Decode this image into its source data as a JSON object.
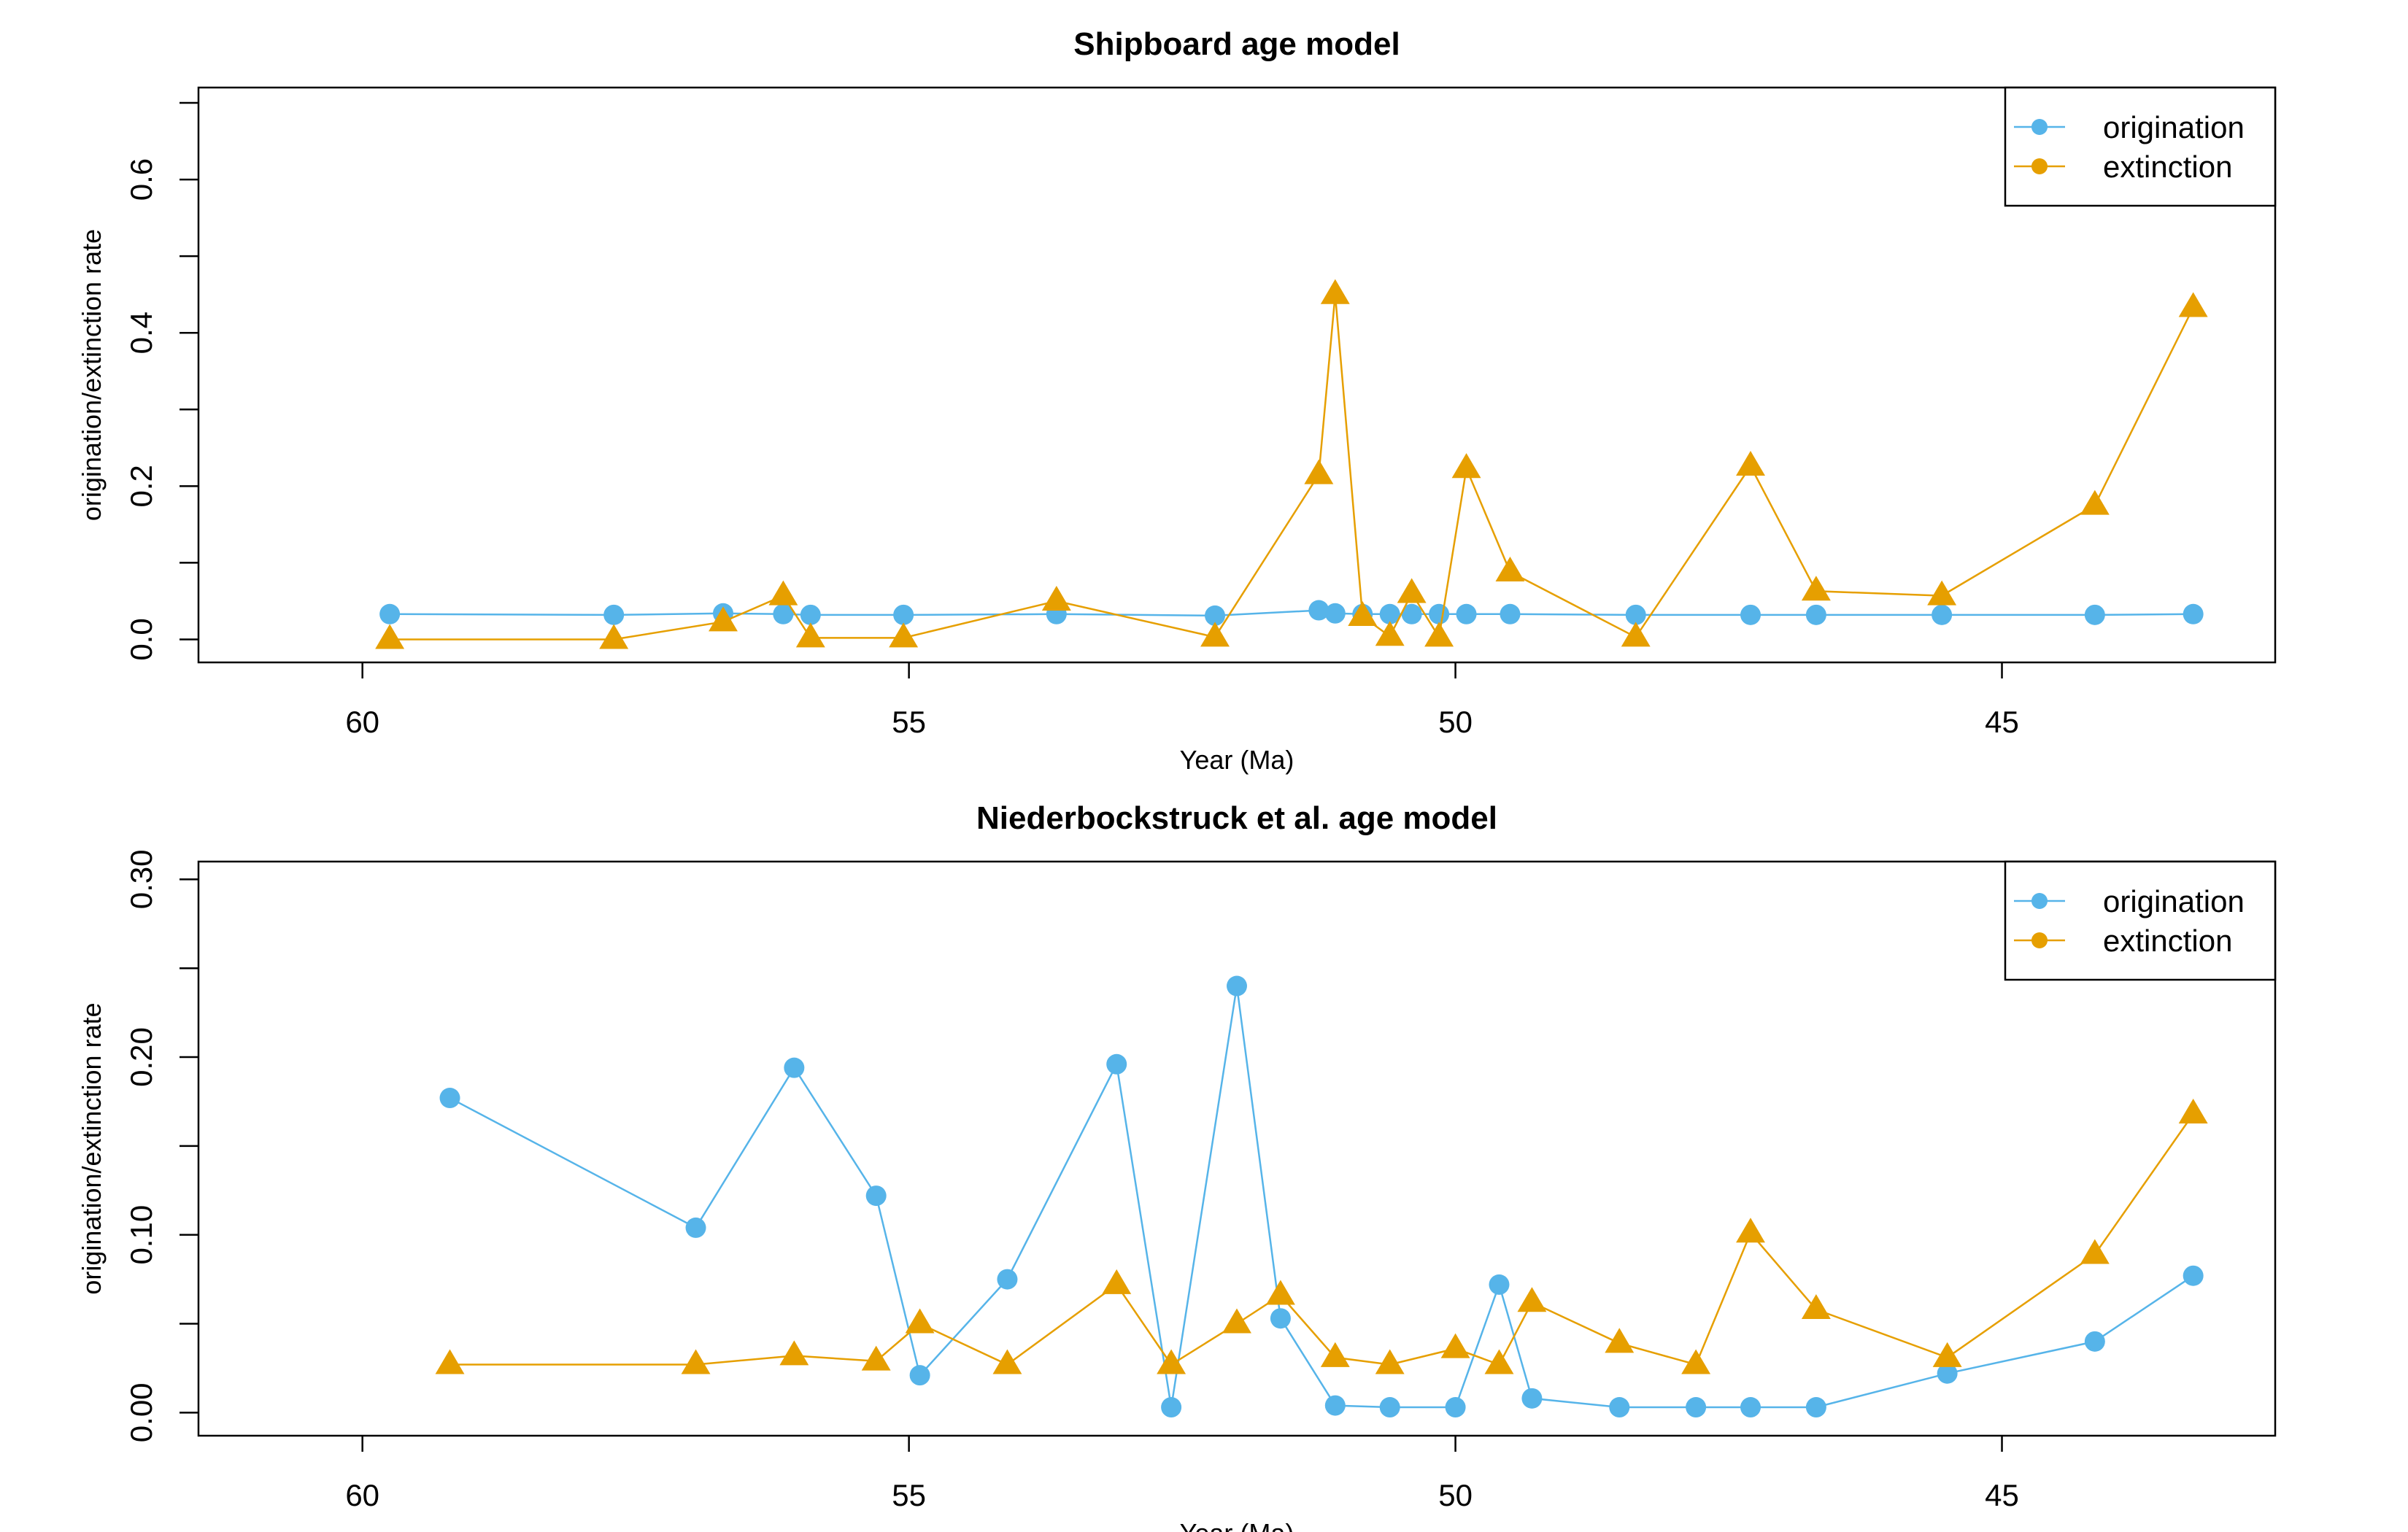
{
  "chart_data": [
    {
      "type": "line",
      "title": "Shipboard age model",
      "xlabel": "Year (Ma)",
      "ylabel": "origination/extinction rate",
      "xlim": [
        61.5,
        42.5
      ],
      "ylim": [
        -0.03,
        0.72
      ],
      "xticks": [
        60,
        55,
        50,
        45
      ],
      "yticks": [
        0.0,
        0.2,
        0.4,
        0.6
      ],
      "yminor": [
        0.1,
        0.3,
        0.5,
        0.7
      ],
      "ytick_labels": [
        "0.0",
        "0.2",
        "0.4",
        "0.6"
      ],
      "legend_position": "top-right",
      "series": [
        {
          "name": "origination",
          "color": "#56B4E9",
          "marker": "circle",
          "points": [
            [
              59.75,
              0.033
            ],
            [
              57.7,
              0.032
            ],
            [
              56.7,
              0.034
            ],
            [
              56.15,
              0.033
            ],
            [
              55.9,
              0.032
            ],
            [
              55.05,
              0.032
            ],
            [
              53.65,
              0.033
            ],
            [
              52.2,
              0.031
            ],
            [
              51.25,
              0.038
            ],
            [
              51.1,
              0.034
            ],
            [
              50.85,
              0.033
            ],
            [
              50.6,
              0.033
            ],
            [
              50.4,
              0.033
            ],
            [
              50.15,
              0.033
            ],
            [
              49.9,
              0.033
            ],
            [
              49.5,
              0.033
            ],
            [
              48.35,
              0.032
            ],
            [
              47.3,
              0.032
            ],
            [
              46.7,
              0.032
            ],
            [
              45.55,
              0.032
            ],
            [
              44.15,
              0.032
            ],
            [
              43.25,
              0.033
            ]
          ]
        },
        {
          "name": "extinction",
          "color": "#E69F00",
          "marker": "triangle",
          "points": [
            [
              59.75,
              0.0
            ],
            [
              57.7,
              0.0
            ],
            [
              56.7,
              0.023
            ],
            [
              56.15,
              0.057
            ],
            [
              55.9,
              0.002
            ],
            [
              55.05,
              0.002
            ],
            [
              53.65,
              0.05
            ],
            [
              52.2,
              0.003
            ],
            [
              51.25,
              0.215
            ],
            [
              51.1,
              0.45
            ],
            [
              50.85,
              0.03
            ],
            [
              50.6,
              0.004
            ],
            [
              50.4,
              0.06
            ],
            [
              50.15,
              0.003
            ],
            [
              49.9,
              0.223
            ],
            [
              49.5,
              0.088
            ],
            [
              48.35,
              0.003
            ],
            [
              47.3,
              0.226
            ],
            [
              46.7,
              0.063
            ],
            [
              45.55,
              0.057
            ],
            [
              44.15,
              0.175
            ],
            [
              43.25,
              0.433
            ]
          ]
        }
      ]
    },
    {
      "type": "line",
      "title": "Niederbockstruck et al. age model",
      "xlabel": "Year (Ma)",
      "ylabel": "origination/extinction rate",
      "xlim": [
        61.5,
        42.5
      ],
      "ylim": [
        -0.013,
        0.31
      ],
      "xticks": [
        60,
        55,
        50,
        45
      ],
      "yticks": [
        0.0,
        0.1,
        0.2,
        0.3
      ],
      "yminor": [
        0.05,
        0.15,
        0.25
      ],
      "ytick_labels": [
        "0.00",
        "0.10",
        "0.20",
        "0.30"
      ],
      "legend_position": "top-right",
      "series": [
        {
          "name": "origination",
          "color": "#56B4E9",
          "marker": "circle",
          "points": [
            [
              59.2,
              0.177
            ],
            [
              56.95,
              0.104
            ],
            [
              56.05,
              0.194
            ],
            [
              55.3,
              0.122
            ],
            [
              54.9,
              0.021
            ],
            [
              54.1,
              0.075
            ],
            [
              53.1,
              0.196
            ],
            [
              52.6,
              0.003
            ],
            [
              52.0,
              0.24
            ],
            [
              51.6,
              0.053
            ],
            [
              51.1,
              0.004
            ],
            [
              50.6,
              0.003
            ],
            [
              50.0,
              0.003
            ],
            [
              49.6,
              0.072
            ],
            [
              49.3,
              0.008
            ],
            [
              48.5,
              0.003
            ],
            [
              47.8,
              0.003
            ],
            [
              47.3,
              0.003
            ],
            [
              46.7,
              0.003
            ],
            [
              45.5,
              0.022
            ],
            [
              44.15,
              0.04
            ],
            [
              43.25,
              0.077
            ]
          ]
        },
        {
          "name": "extinction",
          "color": "#E69F00",
          "marker": "triangle",
          "points": [
            [
              59.2,
              0.027
            ],
            [
              56.95,
              0.027
            ],
            [
              56.05,
              0.032
            ],
            [
              55.3,
              0.029
            ],
            [
              54.9,
              0.05
            ],
            [
              54.1,
              0.027
            ],
            [
              53.1,
              0.072
            ],
            [
              52.6,
              0.027
            ],
            [
              52.0,
              0.05
            ],
            [
              51.6,
              0.066
            ],
            [
              51.1,
              0.031
            ],
            [
              50.6,
              0.027
            ],
            [
              50.0,
              0.036
            ],
            [
              49.6,
              0.027
            ],
            [
              49.3,
              0.062
            ],
            [
              48.5,
              0.039
            ],
            [
              47.8,
              0.027
            ],
            [
              47.3,
              0.101
            ],
            [
              46.7,
              0.058
            ],
            [
              45.5,
              0.031
            ],
            [
              44.15,
              0.089
            ],
            [
              43.25,
              0.168
            ]
          ]
        }
      ]
    }
  ]
}
